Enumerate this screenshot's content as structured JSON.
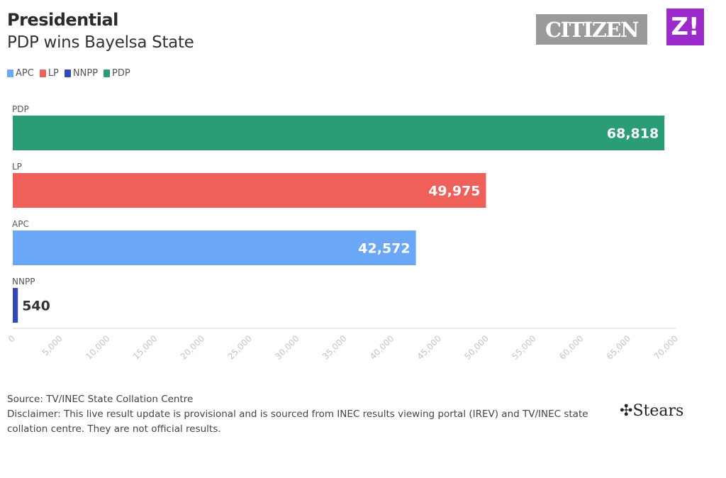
{
  "header": {
    "title": "Presidential",
    "subtitle": "PDP wins Bayelsa State"
  },
  "logos": {
    "citizen": "CITIZEN",
    "z": "Z!",
    "stears": "Stears"
  },
  "legend": [
    {
      "label": "APC",
      "color": "#6aa8f7"
    },
    {
      "label": "LP",
      "color": "#f0605a"
    },
    {
      "label": "NNPP",
      "color": "#3448b4"
    },
    {
      "label": "PDP",
      "color": "#2a9c78"
    }
  ],
  "chart_data": {
    "type": "bar",
    "orientation": "horizontal",
    "title": "Presidential",
    "subtitle": "PDP wins Bayelsa State",
    "categories": [
      "PDP",
      "LP",
      "APC",
      "NNPP"
    ],
    "values": [
      68818,
      49975,
      42572,
      540
    ],
    "value_labels": [
      "68,818",
      "49,975",
      "42,572",
      "540"
    ],
    "colors": [
      "#2a9c78",
      "#f0605a",
      "#6aa8f7",
      "#3448b4"
    ],
    "xlim": [
      0,
      70000
    ],
    "xticks": [
      "0",
      "5,000",
      "10,000",
      "15,000",
      "20,000",
      "25,000",
      "30,000",
      "35,000",
      "40,000",
      "45,000",
      "50,000",
      "55,000",
      "60,000",
      "65,000",
      "70,000"
    ],
    "xlabel": "",
    "ylabel": "",
    "grid": false,
    "legend": "top-left"
  },
  "footer": {
    "source": "Source: TV/INEC State Collation Centre",
    "disclaimer": "Disclaimer: This live result update is provisional and is sourced from INEC results viewing portal (IREV) and TV/INEC state collation centre. They are not official results."
  }
}
